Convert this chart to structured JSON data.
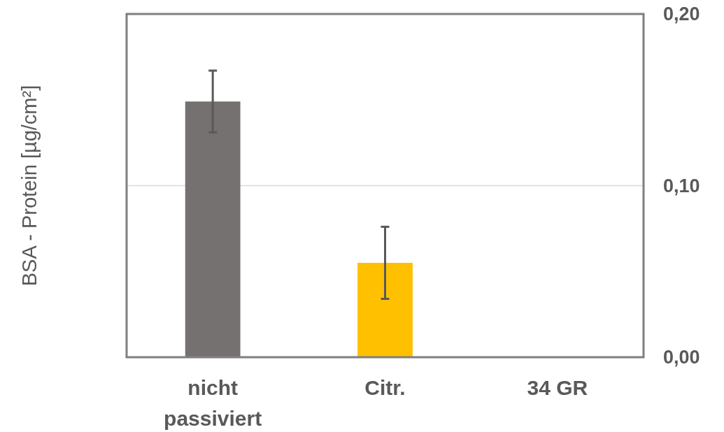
{
  "chart_data": {
    "type": "bar",
    "ylabel": "BSA - Protein [µg/cm²]",
    "categories": [
      "nicht\npassiviert",
      "Citr.",
      "34 GR"
    ],
    "values": [
      0.149,
      0.055,
      0
    ],
    "colors": [
      "#767171",
      "#ffc000",
      "#9dc3e6"
    ],
    "errors": [
      0.018,
      0.021,
      null
    ],
    "ylim": [
      0,
      0.2
    ],
    "yticks": [
      {
        "value": 0,
        "label": "0,00"
      },
      {
        "value": 0.1,
        "label": "0,10"
      },
      {
        "value": 0.2,
        "label": "0,20"
      }
    ],
    "grid": "y"
  }
}
